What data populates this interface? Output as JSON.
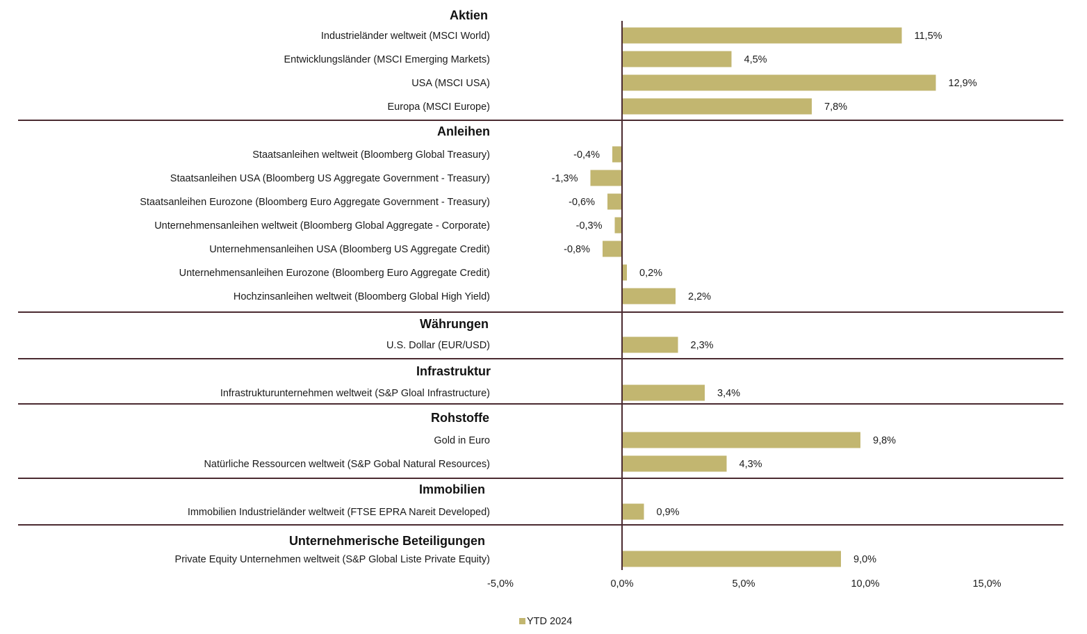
{
  "chart_data": {
    "type": "bar",
    "orientation": "horizontal",
    "title": "",
    "xlabel": "",
    "ylabel": "",
    "xlim": [
      -5,
      18
    ],
    "x_ticks": [
      -5,
      0,
      5,
      10,
      15
    ],
    "x_tick_labels": [
      "-5,0%",
      "0,0%",
      "5,0%",
      "10,0%",
      "15,0%"
    ],
    "grid": false,
    "legend": {
      "placement": "bottom",
      "entries": [
        "YTD 2024"
      ]
    },
    "colors": {
      "bar": "#c2b670",
      "axis": "#4a2a30",
      "separator": "#4a2a30"
    },
    "groups": [
      {
        "name": "Aktien",
        "items": [
          {
            "label": "Industrieländer weltweit (MSCI World)",
            "value": 11.5,
            "value_label": "11,5%"
          },
          {
            "label": "Entwicklungsländer (MSCI Emerging Markets)",
            "value": 4.5,
            "value_label": "4,5%"
          },
          {
            "label": "USA (MSCI USA)",
            "value": 12.9,
            "value_label": "12,9%"
          },
          {
            "label": "Europa (MSCI Europe)",
            "value": 7.8,
            "value_label": "7,8%"
          }
        ]
      },
      {
        "name": "Anleihen",
        "items": [
          {
            "label": "Staatsanleihen weltweit (Bloomberg Global Treasury)",
            "value": -0.4,
            "value_label": "-0,4%"
          },
          {
            "label": "Staatsanleihen USA (Bloomberg US Aggregate Government - Treasury)",
            "value": -1.3,
            "value_label": "-1,3%"
          },
          {
            "label": "Staatsanleihen Eurozone (Bloomberg Euro Aggregate Government - Treasury)",
            "value": -0.6,
            "value_label": "-0,6%"
          },
          {
            "label": "Unternehmensanleihen weltweit (Bloomberg Global Aggregate - Corporate)",
            "value": -0.3,
            "value_label": "-0,3%"
          },
          {
            "label": "Unternehmensanleihen USA (Bloomberg US Aggregate Credit)",
            "value": -0.8,
            "value_label": "-0,8%"
          },
          {
            "label": "Unternehmensanleihen Eurozone (Bloomberg Euro Aggregate Credit)",
            "value": 0.2,
            "value_label": "0,2%"
          },
          {
            "label": "Hochzinsanleihen weltweit (Bloomberg Global High Yield)",
            "value": 2.2,
            "value_label": "2,2%"
          }
        ]
      },
      {
        "name": "Währungen",
        "items": [
          {
            "label": "U.S. Dollar (EUR/USD)",
            "value": 2.3,
            "value_label": "2,3%"
          }
        ]
      },
      {
        "name": "Infrastruktur",
        "items": [
          {
            "label": "Infrastrukturunternehmen weltweit (S&P Gloal Infrastructure)",
            "value": 3.4,
            "value_label": "3,4%"
          }
        ]
      },
      {
        "name": "Rohstoffe",
        "items": [
          {
            "label": "Gold in Euro",
            "value": 9.8,
            "value_label": "9,8%"
          },
          {
            "label": "Natürliche Ressourcen weltweit (S&P Gobal Natural Resources)",
            "value": 4.3,
            "value_label": "4,3%"
          }
        ]
      },
      {
        "name": "Immobilien",
        "items": [
          {
            "label": "Immobilien Industrieländer weltweit (FTSE EPRA Nareit Developed)",
            "value": 0.9,
            "value_label": "0,9%"
          }
        ]
      },
      {
        "name": "Unternehmerische Beteiligungen",
        "items": [
          {
            "label": "Private Equity Unternehmen weltweit (S&P Global Liste Private Equity)",
            "value": 9.0,
            "value_label": "9,0%"
          }
        ]
      }
    ]
  }
}
